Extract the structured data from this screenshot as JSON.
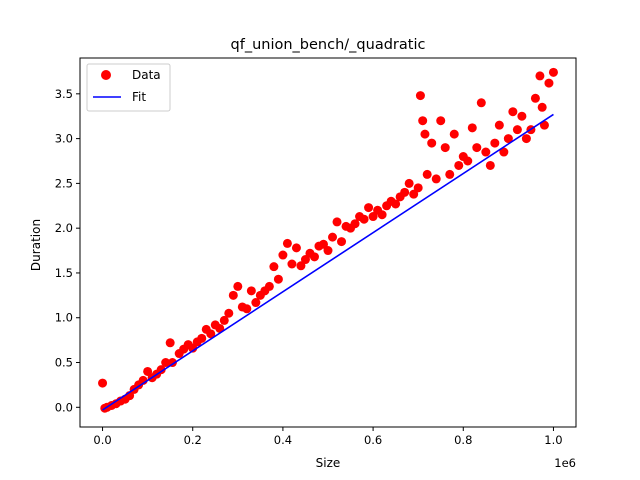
{
  "chart_data": {
    "type": "scatter",
    "title": "qf_union_bench/_quadratic",
    "xlabel": "Size",
    "ylabel": "Duration",
    "x_offset_text": "1e6",
    "xlim": [
      -50000,
      1050000
    ],
    "ylim": [
      -0.22,
      3.9
    ],
    "x_ticks": [
      0,
      200000,
      400000,
      600000,
      800000,
      1000000
    ],
    "x_tick_labels": [
      "0.0",
      "0.2",
      "0.4",
      "0.6",
      "0.8",
      "1.0"
    ],
    "y_ticks": [
      0.0,
      0.5,
      1.0,
      1.5,
      2.0,
      2.5,
      3.0,
      3.5
    ],
    "y_tick_labels": [
      "0.0",
      "0.5",
      "1.0",
      "1.5",
      "2.0",
      "2.5",
      "3.0",
      "3.5"
    ],
    "grid": false,
    "legend_position": "top-left",
    "series": [
      {
        "name": "Data",
        "kind": "scatter",
        "color": "#ff0000",
        "points": [
          [
            0,
            0.27
          ],
          [
            5000,
            -0.01
          ],
          [
            10000,
            0.0
          ],
          [
            20000,
            0.02
          ],
          [
            30000,
            0.04
          ],
          [
            40000,
            0.07
          ],
          [
            50000,
            0.09
          ],
          [
            60000,
            0.13
          ],
          [
            70000,
            0.2
          ],
          [
            80000,
            0.25
          ],
          [
            90000,
            0.3
          ],
          [
            100000,
            0.4
          ],
          [
            110000,
            0.33
          ],
          [
            120000,
            0.37
          ],
          [
            130000,
            0.42
          ],
          [
            140000,
            0.5
          ],
          [
            150000,
            0.72
          ],
          [
            155000,
            0.5
          ],
          [
            170000,
            0.6
          ],
          [
            180000,
            0.65
          ],
          [
            190000,
            0.7
          ],
          [
            200000,
            0.66
          ],
          [
            210000,
            0.73
          ],
          [
            220000,
            0.77
          ],
          [
            230000,
            0.87
          ],
          [
            240000,
            0.82
          ],
          [
            250000,
            0.92
          ],
          [
            260000,
            0.88
          ],
          [
            270000,
            0.97
          ],
          [
            280000,
            1.05
          ],
          [
            290000,
            1.25
          ],
          [
            300000,
            1.35
          ],
          [
            310000,
            1.12
          ],
          [
            320000,
            1.1
          ],
          [
            330000,
            1.3
          ],
          [
            340000,
            1.17
          ],
          [
            350000,
            1.25
          ],
          [
            360000,
            1.3
          ],
          [
            370000,
            1.35
          ],
          [
            380000,
            1.57
          ],
          [
            390000,
            1.43
          ],
          [
            400000,
            1.7
          ],
          [
            410000,
            1.83
          ],
          [
            420000,
            1.6
          ],
          [
            430000,
            1.78
          ],
          [
            440000,
            1.58
          ],
          [
            450000,
            1.65
          ],
          [
            460000,
            1.72
          ],
          [
            470000,
            1.68
          ],
          [
            480000,
            1.8
          ],
          [
            490000,
            1.82
          ],
          [
            500000,
            1.75
          ],
          [
            510000,
            1.9
          ],
          [
            520000,
            2.07
          ],
          [
            530000,
            1.85
          ],
          [
            540000,
            2.02
          ],
          [
            550000,
            2.0
          ],
          [
            560000,
            2.05
          ],
          [
            570000,
            2.13
          ],
          [
            580000,
            2.1
          ],
          [
            590000,
            2.23
          ],
          [
            600000,
            2.13
          ],
          [
            610000,
            2.2
          ],
          [
            620000,
            2.15
          ],
          [
            630000,
            2.25
          ],
          [
            640000,
            2.3
          ],
          [
            650000,
            2.27
          ],
          [
            660000,
            2.35
          ],
          [
            670000,
            2.4
          ],
          [
            680000,
            2.5
          ],
          [
            690000,
            2.38
          ],
          [
            700000,
            2.45
          ],
          [
            705000,
            3.48
          ],
          [
            710000,
            3.2
          ],
          [
            715000,
            3.05
          ],
          [
            720000,
            2.6
          ],
          [
            730000,
            2.95
          ],
          [
            740000,
            2.55
          ],
          [
            750000,
            3.2
          ],
          [
            760000,
            2.9
          ],
          [
            770000,
            2.6
          ],
          [
            780000,
            3.05
          ],
          [
            790000,
            2.7
          ],
          [
            800000,
            2.8
          ],
          [
            810000,
            2.75
          ],
          [
            820000,
            3.12
          ],
          [
            830000,
            2.9
          ],
          [
            840000,
            3.4
          ],
          [
            850000,
            2.85
          ],
          [
            860000,
            2.7
          ],
          [
            870000,
            2.95
          ],
          [
            880000,
            3.15
          ],
          [
            890000,
            2.85
          ],
          [
            900000,
            3.0
          ],
          [
            910000,
            3.3
          ],
          [
            920000,
            3.1
          ],
          [
            930000,
            3.25
          ],
          [
            940000,
            3.0
          ],
          [
            950000,
            3.1
          ],
          [
            960000,
            3.45
          ],
          [
            970000,
            3.7
          ],
          [
            975000,
            3.35
          ],
          [
            980000,
            3.15
          ],
          [
            990000,
            3.62
          ],
          [
            1000000,
            3.74
          ]
        ]
      },
      {
        "name": "Fit",
        "kind": "line",
        "color": "#0000ff",
        "points": [
          [
            0,
            -0.03
          ],
          [
            1000000,
            3.27
          ]
        ]
      }
    ]
  }
}
